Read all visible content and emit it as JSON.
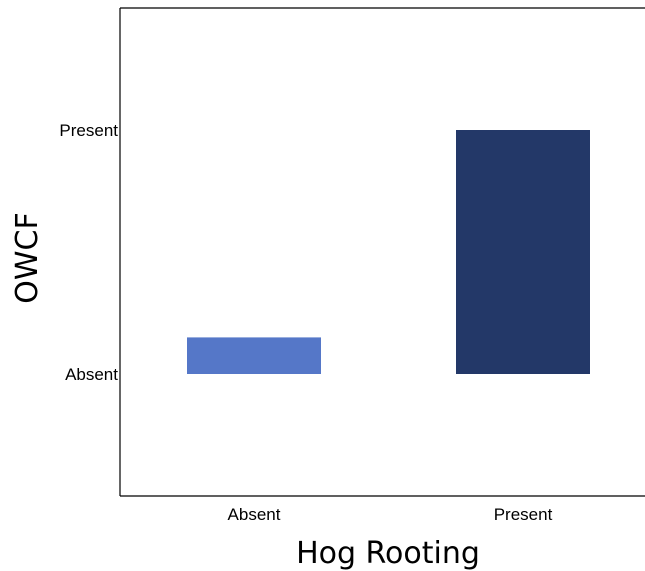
{
  "chart_data": {
    "type": "bar",
    "xlabel": "Hog Rooting",
    "ylabel": "OWCF",
    "categories": [
      "Absent",
      "Present"
    ],
    "y_categories": [
      "Absent",
      "Present"
    ],
    "values": [
      0.15,
      1.0
    ],
    "ylim": [
      -0.5,
      1.5
    ],
    "grid": false,
    "legend": "none",
    "colors": [
      "#5577c8",
      "#233868"
    ]
  }
}
